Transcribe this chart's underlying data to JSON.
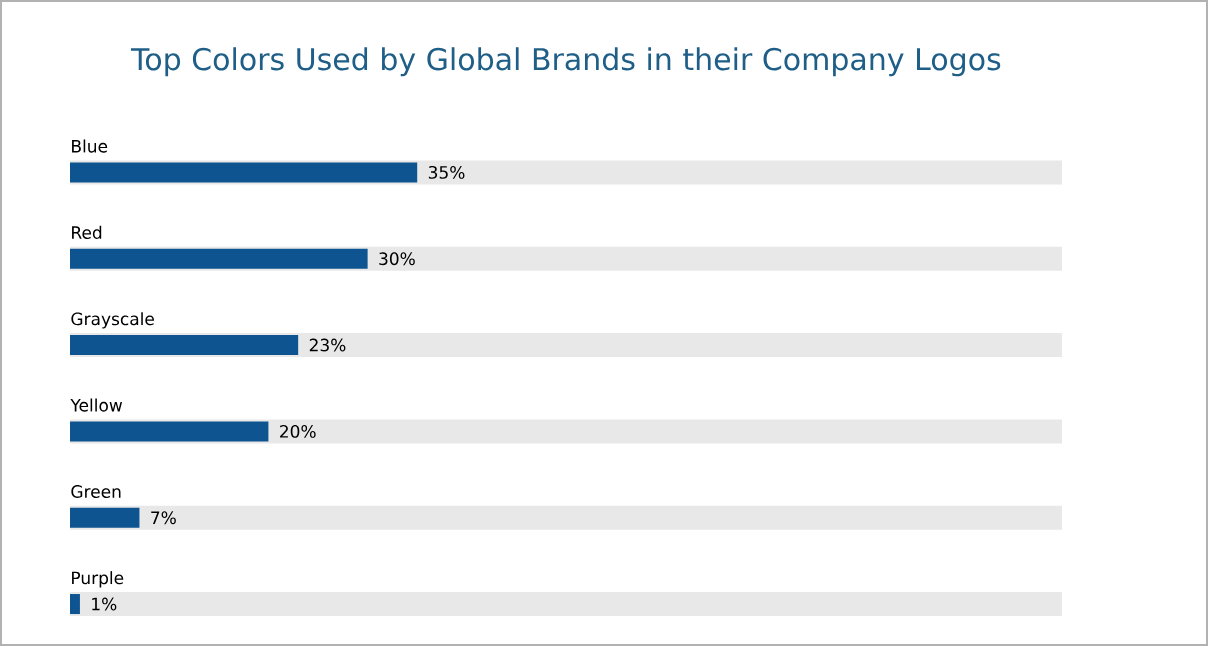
{
  "chart_data": {
    "type": "bar",
    "orientation": "horizontal",
    "title": "Top Colors Used by Global Brands in their Company Logos",
    "categories": [
      "Blue",
      "Red",
      "Grayscale",
      "Yellow",
      "Green",
      "Purple"
    ],
    "values": [
      35,
      30,
      23,
      20,
      7,
      1
    ],
    "value_labels": [
      "35%",
      "30%",
      "23%",
      "20%",
      "7%",
      "1%"
    ],
    "color": "#0d5490",
    "xlim": [
      0,
      100
    ],
    "tick_labels": false
  }
}
